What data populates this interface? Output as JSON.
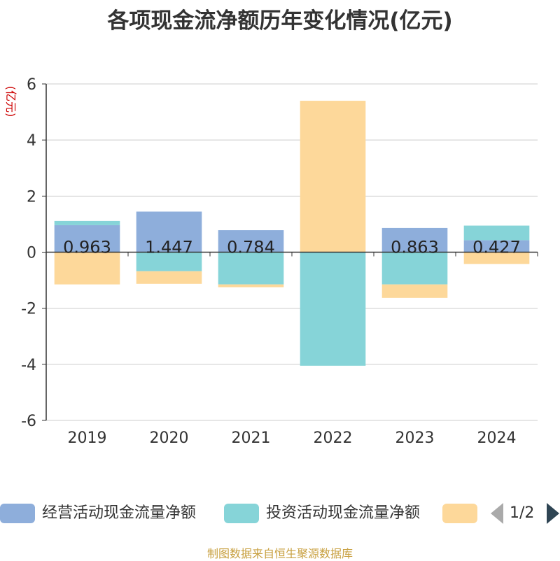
{
  "title": "各项现金流净额历年变化情况(亿元)",
  "source": "制图数据来自恒生聚源数据库",
  "legend": {
    "items": [
      {
        "label": "经营活动现金流量净额",
        "color": "#8eaedb"
      },
      {
        "label": "投资活动现金流量净额",
        "color": "#86d4d8"
      },
      {
        "label": "",
        "color": "#fdd89a"
      }
    ],
    "page_indicator": "1/2"
  },
  "chart_data": {
    "type": "bar",
    "stacked": true,
    "title": "各项现金流净额历年变化情况(亿元)",
    "ylabel": "(亿元)",
    "xlabel": "",
    "ylim": [
      -6,
      6
    ],
    "yticks": [
      6,
      4,
      2,
      0,
      -2,
      -4,
      -6
    ],
    "grid": true,
    "legend_position": "bottom",
    "categories": [
      "2019",
      "2020",
      "2021",
      "2022",
      "2023",
      "2024"
    ],
    "series": [
      {
        "name": "经营活动现金流量净额",
        "color": "#8eaedb",
        "values": [
          0.963,
          1.447,
          0.784,
          -0.01,
          0.863,
          0.427
        ]
      },
      {
        "name": "投资活动现金流量净额",
        "color": "#86d4d8",
        "values": [
          0.15,
          -0.68,
          -1.15,
          -4.04,
          -1.15,
          0.52
        ]
      },
      {
        "name": "",
        "color": "#fdd89a",
        "values": [
          -1.15,
          -0.45,
          -0.1,
          5.4,
          -0.48,
          -0.42
        ]
      }
    ],
    "data_labels": [
      "0.963",
      "1.447",
      "0.784",
      "",
      "0.863",
      "0.427"
    ]
  }
}
